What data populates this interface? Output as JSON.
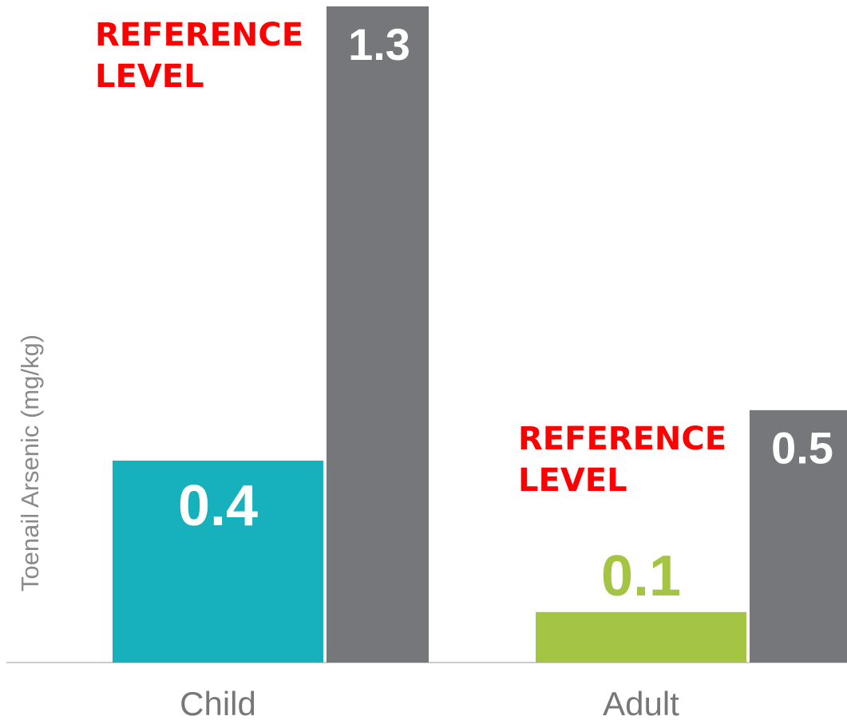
{
  "chart_data": {
    "type": "bar",
    "y_label": "Toenail Arsenic (mg/kg)",
    "categories": [
      "Child",
      "Adult"
    ],
    "series": [
      {
        "colors": [
          "#17b0bd",
          "#a4c443"
        ],
        "values": [
          0.4,
          0.1
        ]
      },
      {
        "color": "#76777b",
        "values": [
          1.3,
          0.5
        ]
      }
    ],
    "annotations": [
      "REFERENCE LEVEL",
      "REFERENCE LEVEL"
    ],
    "ylim": [
      0,
      1.3
    ]
  }
}
